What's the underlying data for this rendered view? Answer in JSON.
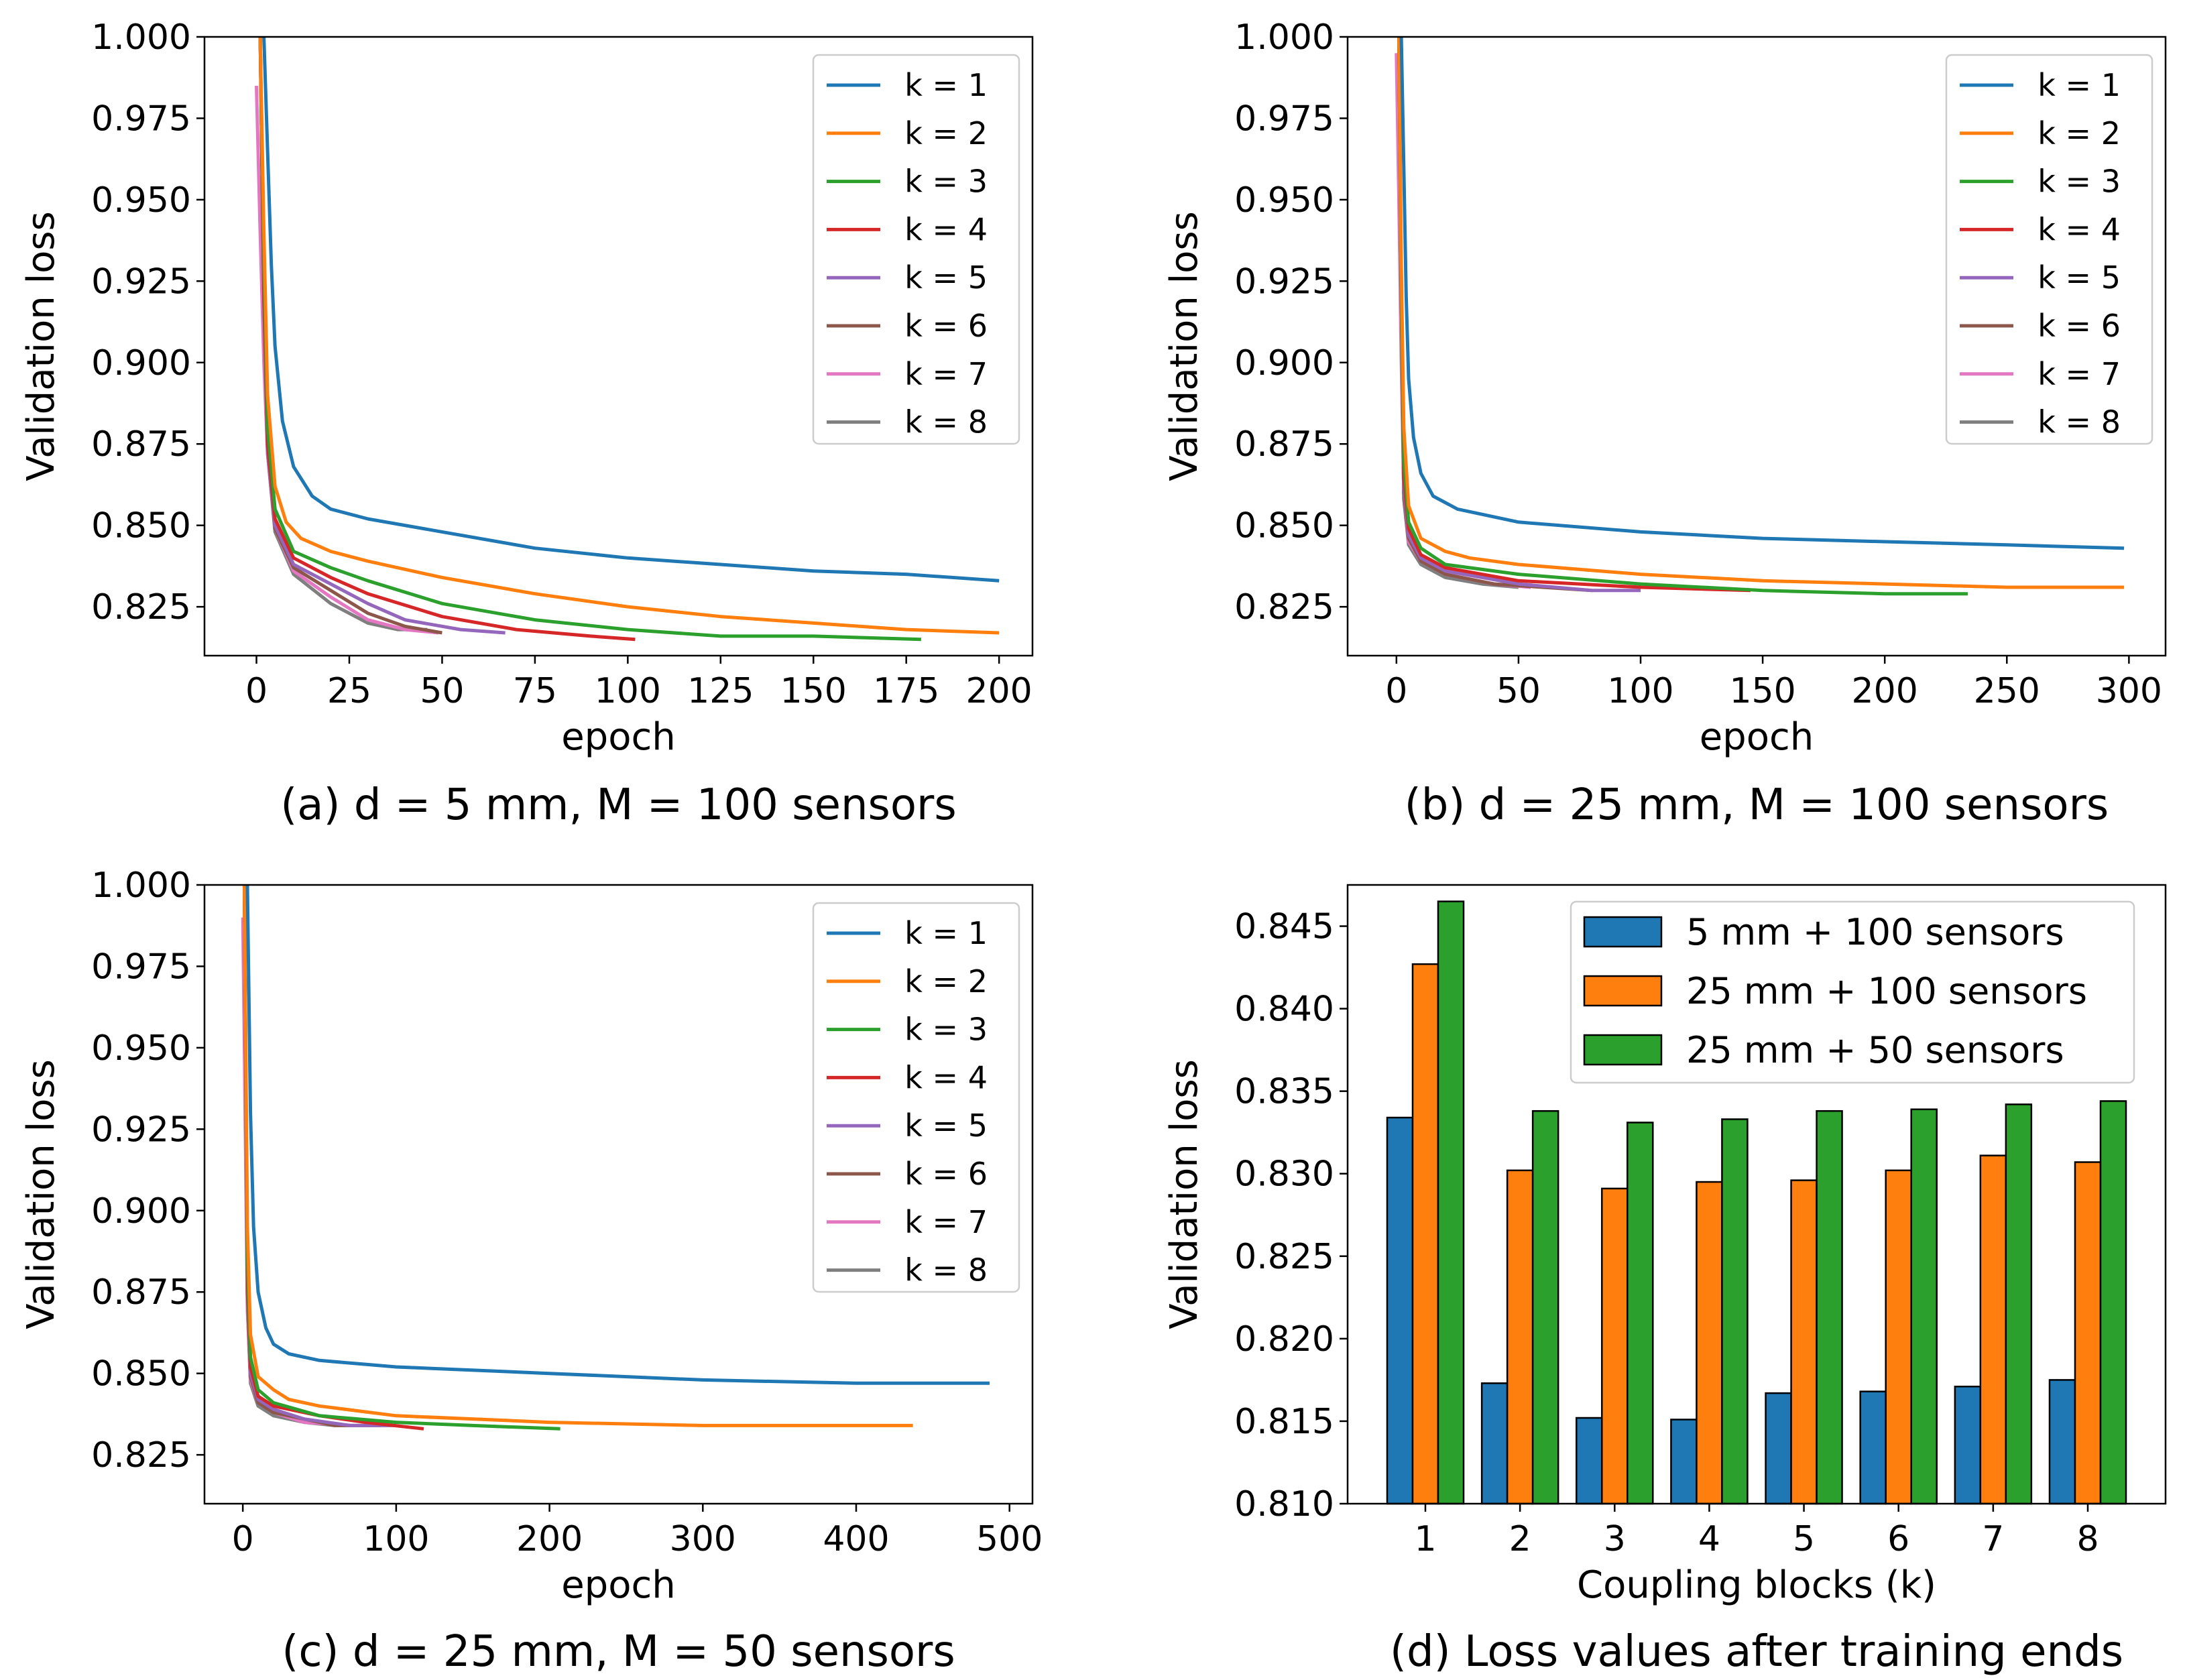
{
  "colors": [
    "#1f77b4",
    "#ff7f0e",
    "#2ca02c",
    "#d62728",
    "#9467bd",
    "#8c564b",
    "#e377c2",
    "#7f7f7f"
  ],
  "chart_data": [
    {
      "type": "line",
      "caption": "(a) d = 5 mm, M = 100 sensors",
      "xlabel": "epoch",
      "ylabel": "Validation loss",
      "xlim": [
        -14,
        209
      ],
      "ylim": [
        0.81,
        1.0
      ],
      "xticks": [
        0,
        25,
        50,
        75,
        100,
        125,
        150,
        175,
        200
      ],
      "yticks": [
        0.825,
        0.85,
        0.875,
        0.9,
        0.925,
        0.95,
        0.975,
        1.0
      ],
      "ytick_labels": [
        "0.825",
        "0.850",
        "0.875",
        "0.900",
        "0.925",
        "0.950",
        "0.975",
        "1.000"
      ],
      "legend_position": "top-right",
      "series": [
        {
          "name": "k = 1",
          "x": [
            2,
            3,
            4,
            5,
            7,
            10,
            15,
            20,
            30,
            50,
            75,
            100,
            125,
            150,
            175,
            200
          ],
          "y": [
            1.0,
            0.965,
            0.93,
            0.905,
            0.882,
            0.868,
            0.859,
            0.855,
            0.852,
            0.848,
            0.843,
            0.84,
            0.838,
            0.836,
            0.835,
            0.833
          ]
        },
        {
          "name": "k = 2",
          "x": [
            1,
            2,
            3,
            5,
            8,
            12,
            20,
            30,
            50,
            75,
            100,
            125,
            150,
            175,
            200
          ],
          "y": [
            1.0,
            0.94,
            0.89,
            0.862,
            0.851,
            0.846,
            0.842,
            0.839,
            0.834,
            0.829,
            0.825,
            0.822,
            0.82,
            0.818,
            0.817
          ]
        },
        {
          "name": "k = 3",
          "x": [
            1,
            2,
            3,
            5,
            10,
            20,
            30,
            50,
            75,
            100,
            125,
            150,
            179
          ],
          "y": [
            1.0,
            0.93,
            0.88,
            0.855,
            0.842,
            0.837,
            0.833,
            0.826,
            0.821,
            0.818,
            0.816,
            0.816,
            0.815
          ]
        },
        {
          "name": "k = 4",
          "x": [
            1,
            2,
            3,
            5,
            10,
            20,
            30,
            50,
            70,
            90,
            102
          ],
          "y": [
            1.0,
            0.92,
            0.875,
            0.852,
            0.84,
            0.834,
            0.829,
            0.822,
            0.818,
            0.816,
            0.815
          ]
        },
        {
          "name": "k = 5",
          "x": [
            1,
            2,
            3,
            5,
            10,
            20,
            30,
            40,
            55,
            67
          ],
          "y": [
            1.0,
            0.92,
            0.873,
            0.85,
            0.838,
            0.832,
            0.826,
            0.821,
            0.818,
            0.817
          ]
        },
        {
          "name": "k = 6",
          "x": [
            1,
            2,
            3,
            5,
            10,
            20,
            30,
            40,
            50
          ],
          "y": [
            1.0,
            0.92,
            0.873,
            0.849,
            0.837,
            0.83,
            0.823,
            0.819,
            0.817
          ]
        },
        {
          "name": "k = 7",
          "x": [
            0,
            1,
            2,
            3,
            5,
            10,
            20,
            30,
            40,
            49
          ],
          "y": [
            0.985,
            0.94,
            0.9,
            0.872,
            0.849,
            0.836,
            0.828,
            0.821,
            0.818,
            0.817
          ]
        },
        {
          "name": "k = 8",
          "x": [
            1,
            2,
            3,
            5,
            10,
            20,
            30,
            38,
            46
          ],
          "y": [
            1.0,
            0.92,
            0.872,
            0.848,
            0.835,
            0.826,
            0.82,
            0.818,
            0.818
          ]
        }
      ]
    },
    {
      "type": "line",
      "caption": "(b) d = 25 mm, M = 100 sensors",
      "xlabel": "epoch",
      "ylabel": "Validation loss",
      "xlim": [
        -20,
        315
      ],
      "ylim": [
        0.81,
        1.0
      ],
      "xticks": [
        0,
        50,
        100,
        150,
        200,
        250,
        300
      ],
      "yticks": [
        0.825,
        0.85,
        0.875,
        0.9,
        0.925,
        0.95,
        0.975,
        1.0
      ],
      "ytick_labels": [
        "0.825",
        "0.850",
        "0.875",
        "0.900",
        "0.925",
        "0.950",
        "0.975",
        "1.000"
      ],
      "legend_position": "top-right",
      "series": [
        {
          "name": "k = 1",
          "x": [
            2,
            3,
            4,
            5,
            7,
            10,
            15,
            25,
            50,
            100,
            150,
            200,
            250,
            298
          ],
          "y": [
            1.0,
            0.96,
            0.92,
            0.895,
            0.877,
            0.866,
            0.859,
            0.855,
            0.851,
            0.848,
            0.846,
            0.845,
            0.844,
            0.843
          ]
        },
        {
          "name": "k = 2",
          "x": [
            1,
            2,
            3,
            5,
            10,
            20,
            30,
            50,
            100,
            150,
            200,
            250,
            298
          ],
          "y": [
            1.0,
            0.93,
            0.88,
            0.856,
            0.846,
            0.842,
            0.84,
            0.838,
            0.835,
            0.833,
            0.832,
            0.831,
            0.831
          ]
        },
        {
          "name": "k = 3",
          "x": [
            1,
            2,
            3,
            5,
            10,
            20,
            50,
            100,
            150,
            200,
            234
          ],
          "y": [
            1.0,
            0.92,
            0.87,
            0.851,
            0.843,
            0.838,
            0.835,
            0.832,
            0.83,
            0.829,
            0.829
          ]
        },
        {
          "name": "k = 4",
          "x": [
            1,
            2,
            3,
            5,
            10,
            20,
            50,
            100,
            145
          ],
          "y": [
            1.0,
            0.92,
            0.865,
            0.849,
            0.841,
            0.837,
            0.833,
            0.831,
            0.83
          ]
        },
        {
          "name": "k = 5",
          "x": [
            1,
            2,
            3,
            5,
            10,
            20,
            50,
            80,
            100
          ],
          "y": [
            1.0,
            0.92,
            0.862,
            0.847,
            0.84,
            0.836,
            0.832,
            0.83,
            0.83
          ]
        },
        {
          "name": "k = 6",
          "x": [
            1,
            2,
            3,
            5,
            10,
            20,
            40,
            60,
            80
          ],
          "y": [
            1.0,
            0.92,
            0.86,
            0.846,
            0.839,
            0.835,
            0.832,
            0.831,
            0.83
          ]
        },
        {
          "name": "k = 7",
          "x": [
            0,
            1,
            2,
            3,
            5,
            10,
            20,
            40,
            55
          ],
          "y": [
            0.995,
            0.95,
            0.9,
            0.86,
            0.845,
            0.839,
            0.835,
            0.832,
            0.831
          ]
        },
        {
          "name": "k = 8",
          "x": [
            1,
            2,
            3,
            5,
            10,
            20,
            35,
            50
          ],
          "y": [
            1.0,
            0.92,
            0.858,
            0.844,
            0.838,
            0.834,
            0.832,
            0.831
          ]
        }
      ]
    },
    {
      "type": "line",
      "caption": "(c) d = 25 mm, M = 50 sensors",
      "xlabel": "epoch",
      "ylabel": "Validation loss",
      "xlim": [
        -25,
        515
      ],
      "ylim": [
        0.81,
        1.0
      ],
      "xticks": [
        0,
        100,
        200,
        300,
        400,
        500
      ],
      "yticks": [
        0.825,
        0.85,
        0.875,
        0.9,
        0.925,
        0.95,
        0.975,
        1.0
      ],
      "ytick_labels": [
        "0.825",
        "0.850",
        "0.875",
        "0.900",
        "0.925",
        "0.950",
        "0.975",
        "1.000"
      ],
      "legend_position": "top-right",
      "series": [
        {
          "name": "k = 1",
          "x": [
            3,
            5,
            7,
            10,
            15,
            20,
            30,
            50,
            100,
            200,
            300,
            400,
            487
          ],
          "y": [
            1.0,
            0.93,
            0.895,
            0.875,
            0.864,
            0.859,
            0.856,
            0.854,
            0.852,
            0.85,
            0.848,
            0.847,
            0.847
          ]
        },
        {
          "name": "k = 2",
          "x": [
            1,
            3,
            5,
            10,
            20,
            30,
            50,
            100,
            200,
            300,
            400,
            437
          ],
          "y": [
            1.0,
            0.895,
            0.862,
            0.849,
            0.845,
            0.842,
            0.84,
            0.837,
            0.835,
            0.834,
            0.834,
            0.834
          ]
        },
        {
          "name": "k = 3",
          "x": [
            1,
            3,
            5,
            10,
            20,
            50,
            100,
            150,
            207
          ],
          "y": [
            1.0,
            0.885,
            0.855,
            0.845,
            0.841,
            0.837,
            0.835,
            0.834,
            0.833
          ]
        },
        {
          "name": "k = 4",
          "x": [
            1,
            3,
            5,
            10,
            20,
            50,
            80,
            118
          ],
          "y": [
            1.0,
            0.88,
            0.852,
            0.843,
            0.84,
            0.837,
            0.835,
            0.833
          ]
        },
        {
          "name": "k = 5",
          "x": [
            1,
            3,
            5,
            10,
            20,
            40,
            70,
            100
          ],
          "y": [
            1.0,
            0.88,
            0.85,
            0.842,
            0.839,
            0.836,
            0.834,
            0.834
          ]
        },
        {
          "name": "k = 6",
          "x": [
            1,
            3,
            5,
            10,
            20,
            40,
            60,
            90
          ],
          "y": [
            1.0,
            0.875,
            0.849,
            0.841,
            0.838,
            0.836,
            0.834,
            0.834
          ]
        },
        {
          "name": "k = 7",
          "x": [
            0,
            1,
            3,
            5,
            10,
            20,
            40,
            70
          ],
          "y": [
            0.99,
            0.95,
            0.87,
            0.848,
            0.841,
            0.838,
            0.835,
            0.834
          ]
        },
        {
          "name": "k = 8",
          "x": [
            1,
            3,
            5,
            10,
            20,
            40,
            60
          ],
          "y": [
            1.0,
            0.87,
            0.847,
            0.84,
            0.837,
            0.835,
            0.834
          ]
        }
      ]
    },
    {
      "type": "bar",
      "caption": "(d) Loss values after training ends",
      "xlabel": "Coupling blocks (k)",
      "ylabel": "Validation loss",
      "categories": [
        "1",
        "2",
        "3",
        "4",
        "5",
        "6",
        "7",
        "8"
      ],
      "ylim": [
        0.81,
        0.8475
      ],
      "yticks": [
        0.81,
        0.815,
        0.82,
        0.825,
        0.83,
        0.835,
        0.84,
        0.845
      ],
      "ytick_labels": [
        "0.810",
        "0.815",
        "0.820",
        "0.825",
        "0.830",
        "0.835",
        "0.840",
        "0.845"
      ],
      "legend_position": "top-right",
      "series": [
        {
          "name": "5 mm + 100 sensors",
          "values": [
            0.8334,
            0.8173,
            0.8152,
            0.8151,
            0.8167,
            0.8168,
            0.8171,
            0.8175
          ]
        },
        {
          "name": "25 mm + 100 sensors",
          "values": [
            0.8427,
            0.8302,
            0.8291,
            0.8295,
            0.8296,
            0.8302,
            0.8311,
            0.8307
          ]
        },
        {
          "name": "25 mm + 50 sensors",
          "values": [
            0.8465,
            0.8338,
            0.8331,
            0.8333,
            0.8338,
            0.8339,
            0.8342,
            0.8344
          ]
        }
      ]
    }
  ]
}
